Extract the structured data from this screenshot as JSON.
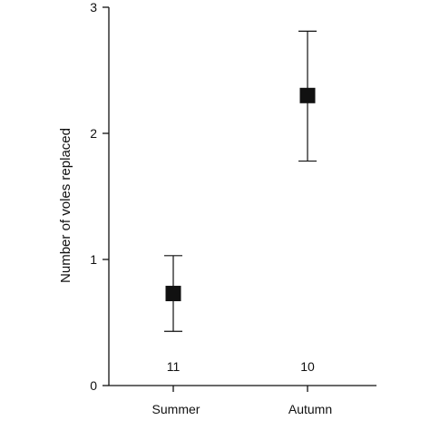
{
  "chart_data": {
    "type": "scatter",
    "title": "",
    "xlabel": "",
    "ylabel": "Number of voles replaced",
    "categories": [
      "Summer",
      "Autumn"
    ],
    "means": [
      0.73,
      2.3
    ],
    "error_lower": [
      0.43,
      1.78
    ],
    "error_upper": [
      1.03,
      2.81
    ],
    "sample_sizes": [
      "11",
      "10"
    ],
    "ylim": [
      0,
      3
    ],
    "yticks": [
      0,
      1,
      2,
      3
    ],
    "ytick_labels": [
      "0",
      "1",
      "2",
      "3"
    ],
    "marker": "filled-square",
    "marker_color": "#111111",
    "grid": false,
    "legend": "none"
  }
}
